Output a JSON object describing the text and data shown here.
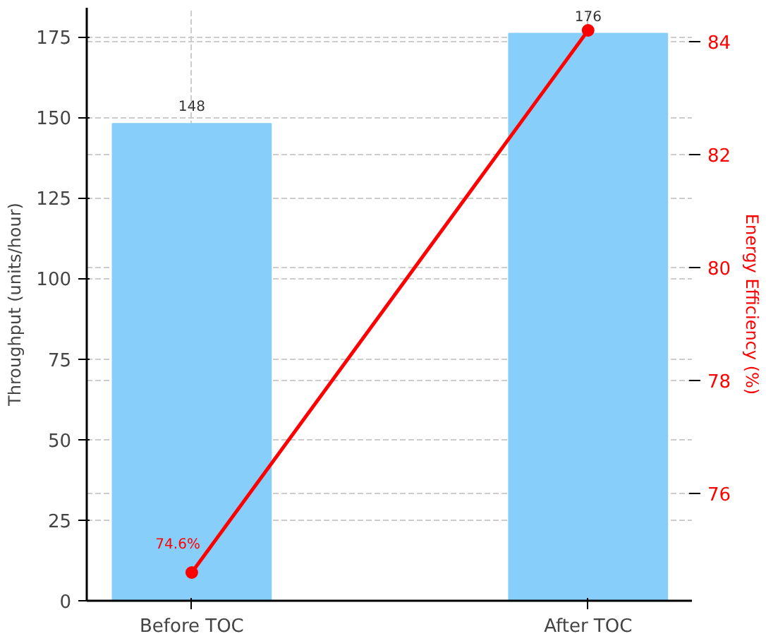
{
  "chart_data": {
    "type": "bar",
    "categories": [
      "Before TOC",
      "After TOC"
    ],
    "series": [
      {
        "color": "#87cefa",
        "values": [
          148,
          176
        ],
        "value_labels": [
          "148",
          "176"
        ]
      },
      {
        "type": "line",
        "axis": "y2",
        "color": "#ff0000",
        "values": [
          74.6,
          84.2
        ],
        "value_labels": [
          "74.6%",
          null
        ]
      }
    ],
    "ylabel": "Throughput (units/hour)",
    "y2label": "Energy Efficiency (%)",
    "ylim": [
      0,
      184
    ],
    "yticks": [
      0,
      25,
      50,
      75,
      100,
      125,
      150,
      175
    ],
    "y2lim": [
      74.1,
      84.6
    ],
    "y2ticks": [
      76,
      78,
      80,
      82,
      84
    ],
    "grid": true,
    "marker": "circle",
    "line_style": "solid"
  }
}
